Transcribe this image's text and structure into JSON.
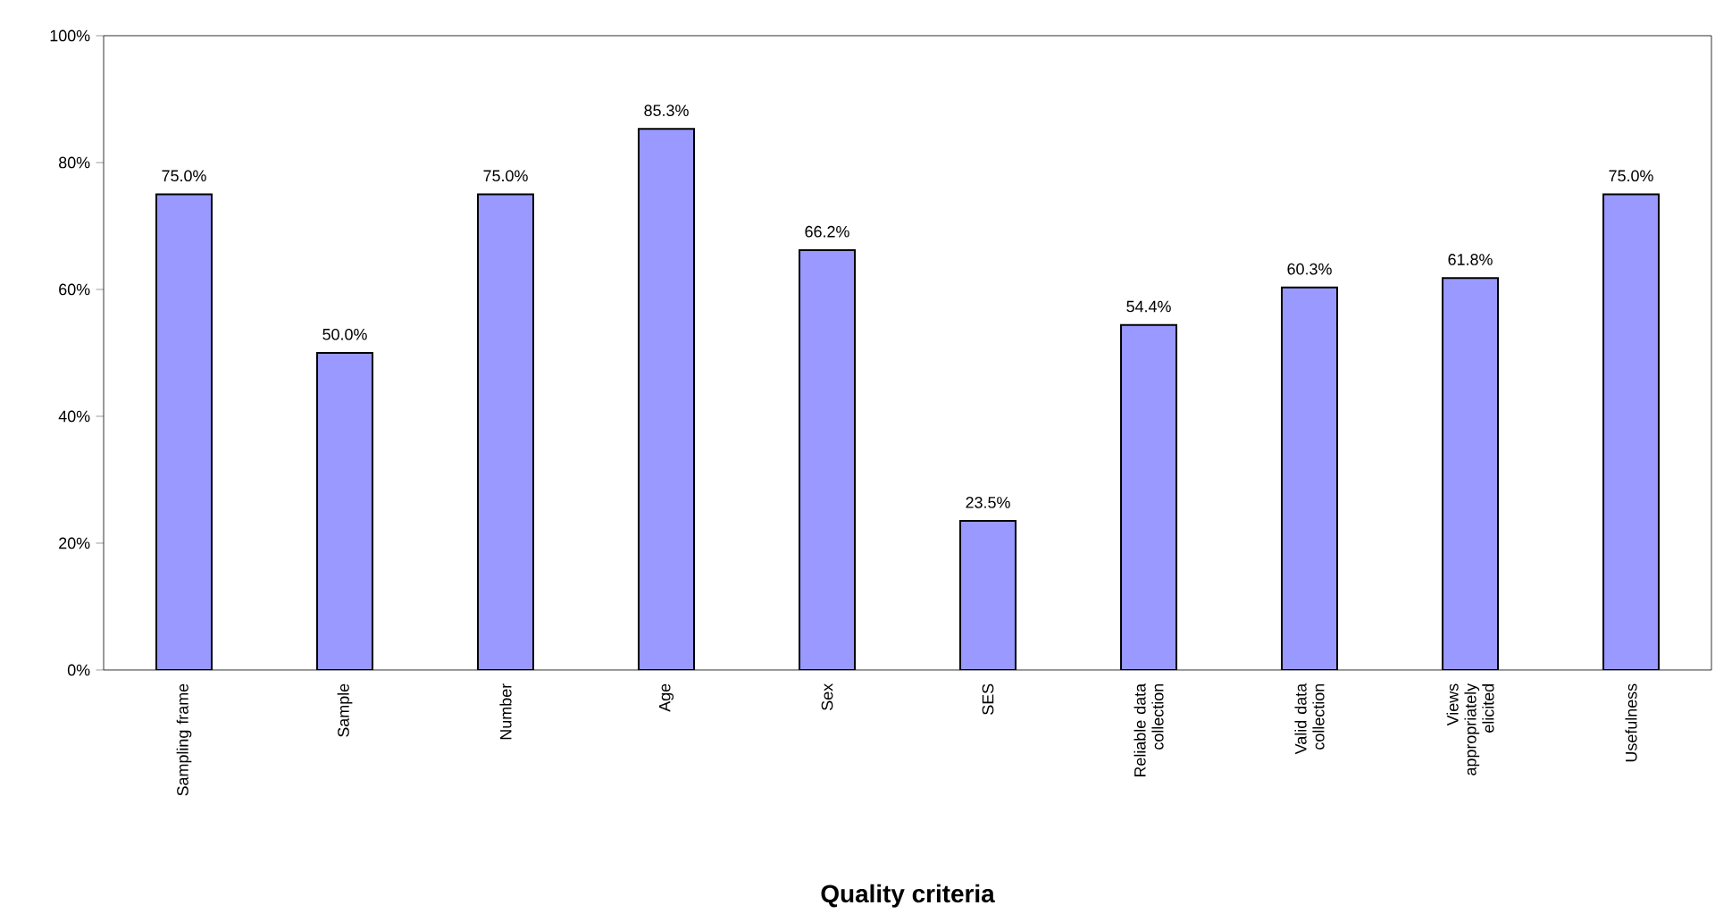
{
  "chart_data": {
    "type": "bar",
    "xlabel": "Quality criteria",
    "categories": [
      "Sampling frame",
      "Sample",
      "Number",
      "Age",
      "Sex",
      "SES",
      "Reliable data collection",
      "Valid data collection",
      "Views appropriately elicited",
      "Usefulness"
    ],
    "values": [
      75.0,
      50.0,
      75.0,
      85.3,
      66.2,
      23.5,
      54.4,
      60.3,
      61.8,
      75.0
    ],
    "value_labels": [
      "75.0%",
      "50.0%",
      "75.0%",
      "85.3%",
      "66.2%",
      "23.5%",
      "54.4%",
      "60.3%",
      "61.8%",
      "75.0%"
    ],
    "color": "#9999ff",
    "ylim": [
      0,
      100
    ],
    "yticks": [
      {
        "value": 0,
        "label": "0%"
      },
      {
        "value": 20,
        "label": "20%"
      },
      {
        "value": 40,
        "label": "40%"
      },
      {
        "value": 60,
        "label": "60%"
      },
      {
        "value": 80,
        "label": "80%"
      },
      {
        "value": 100,
        "label": "100%"
      }
    ],
    "grid": false
  }
}
